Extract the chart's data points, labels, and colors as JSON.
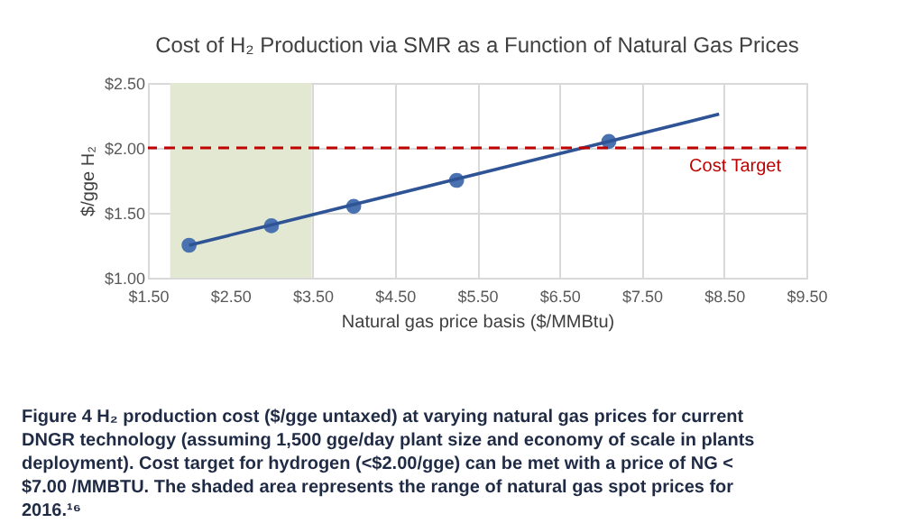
{
  "chart_data": {
    "type": "scatter",
    "title": "Cost of H₂ Production via SMR as a Function of Natural Gas Prices",
    "xlabel": "Natural gas price basis ($/MMBtu)",
    "ylabel": "$/gge H₂",
    "series": [
      {
        "type": "scatter",
        "color": "#4a72b0",
        "x": [
          2.0,
          3.0,
          4.0,
          5.25,
          7.1
        ],
        "values": [
          1.25,
          1.4,
          1.55,
          1.75,
          2.05
        ],
        "marker": "circle"
      },
      {
        "type": "line",
        "color": "#2f5496",
        "x": [
          2.0,
          8.44
        ],
        "values": [
          1.25,
          2.26
        ],
        "marker": "none"
      }
    ],
    "xlim": [
      1.5,
      9.5
    ],
    "xticks": [
      {
        "value": 1.5,
        "label": "$1.50"
      },
      {
        "value": 2.5,
        "label": "$2.50"
      },
      {
        "value": 3.5,
        "label": "$3.50"
      },
      {
        "value": 4.5,
        "label": "$4.50"
      },
      {
        "value": 5.5,
        "label": "$5.50"
      },
      {
        "value": 6.5,
        "label": "$6.50"
      },
      {
        "value": 7.5,
        "label": "$7.50"
      },
      {
        "value": 8.5,
        "label": "$8.50"
      },
      {
        "value": 9.5,
        "label": "$9.50"
      }
    ],
    "ylim": [
      1.0,
      2.5
    ],
    "yticks": [
      {
        "value": 1.0,
        "label": "$1.00"
      },
      {
        "value": 1.5,
        "label": "$1.50"
      },
      {
        "value": 2.0,
        "label": "$2.00"
      },
      {
        "value": 2.5,
        "label": "$2.50"
      }
    ],
    "ref_lines": [
      {
        "axis": "y",
        "value": 2.0,
        "label": "Cost Target",
        "color": "#c00000",
        "line_style": "dashed"
      }
    ],
    "bands": [
      {
        "axis": "x",
        "from": 1.77,
        "to": 3.49,
        "color": "#e2e8d2"
      }
    ],
    "grid": true,
    "annotations": [
      "Figure 4 H₂ production cost ($/gge untaxed) at varying natural gas prices for current DNGR technology (assuming 1,500 gge/day plant size and economy of scale in plants deployment). Cost target for hydrogen (<$2.00/gge) can be met with a price of NG < $7.00 /MMBTU. The shaded area represents the range of natural gas spot prices for 2016.¹⁶"
    ]
  }
}
